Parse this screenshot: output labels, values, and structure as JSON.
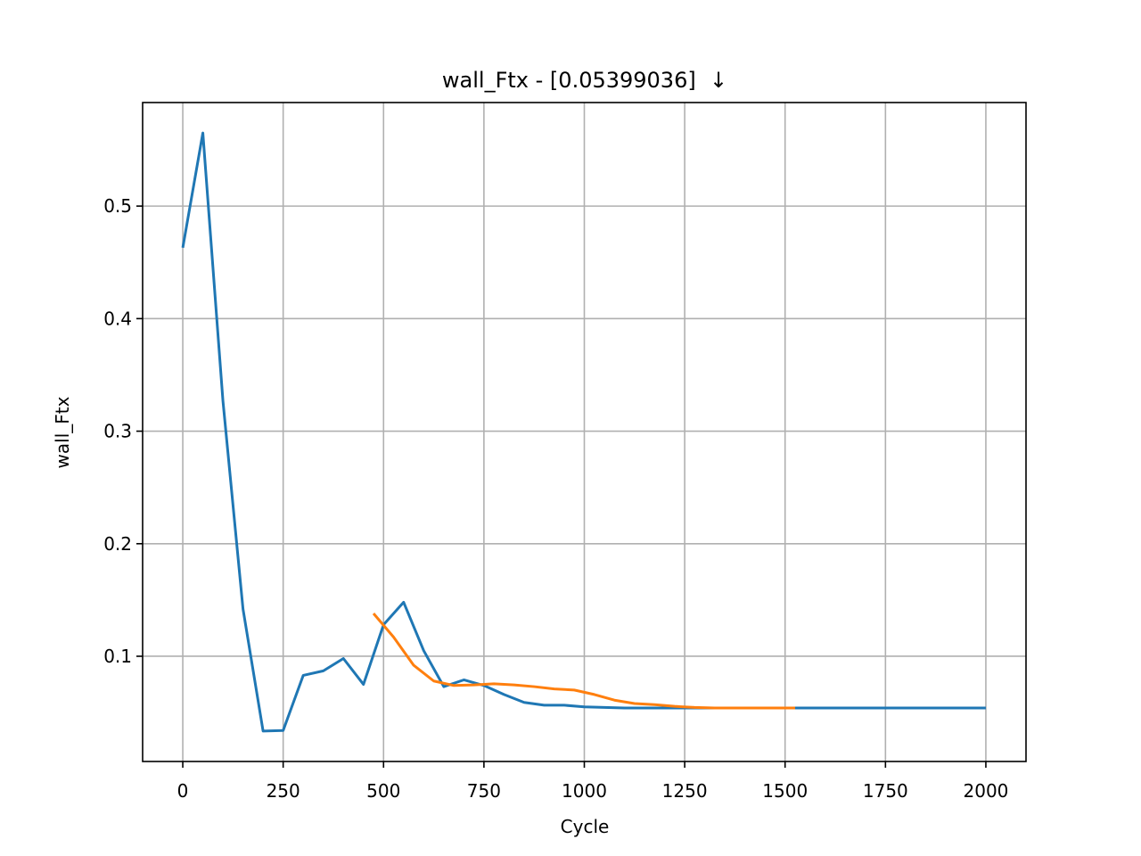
{
  "chart_data": {
    "type": "line",
    "title": "wall_Ftx - [0.05399036]  ↓",
    "x_label": "Cycle",
    "y_label": "wall_Ftx",
    "xlim": [
      -100,
      2100
    ],
    "ylim": [
      0.0065,
      0.592
    ],
    "xticks": [
      0,
      250,
      500,
      750,
      1000,
      1250,
      1500,
      1750,
      2000
    ],
    "yticks": [
      0.1,
      0.2,
      0.3,
      0.4,
      0.5
    ],
    "grid": true,
    "series": [
      {
        "color": "#1f77b4",
        "x": [
          0,
          50,
          100,
          150,
          200,
          250,
          300,
          350,
          400,
          450,
          500,
          550,
          600,
          650,
          700,
          750,
          800,
          850,
          900,
          950,
          1000,
          1050,
          1100,
          1150,
          1200,
          1250,
          1300,
          1350,
          1400,
          1450,
          1500,
          1550,
          1600,
          1650,
          1700,
          1750,
          1800,
          1850,
          1900,
          1950,
          2000
        ],
        "values": [
          0.463,
          0.565,
          0.327,
          0.142,
          0.0335,
          0.034,
          0.083,
          0.087,
          0.098,
          0.075,
          0.128,
          0.148,
          0.105,
          0.073,
          0.079,
          0.074,
          0.066,
          0.059,
          0.0565,
          0.0565,
          0.055,
          0.0545,
          0.054,
          0.054,
          0.054,
          0.054,
          0.054,
          0.054,
          0.054,
          0.054,
          0.054,
          0.054,
          0.054,
          0.054,
          0.054,
          0.054,
          0.054,
          0.054,
          0.054,
          0.054,
          0.054
        ]
      },
      {
        "color": "#ff7f0e",
        "x": [
          475,
          525,
          575,
          625,
          675,
          725,
          775,
          825,
          875,
          925,
          975,
          1025,
          1075,
          1125,
          1175,
          1225,
          1275,
          1325,
          1375,
          1425,
          1475,
          1525
        ],
        "values": [
          0.138,
          0.117,
          0.092,
          0.078,
          0.074,
          0.0745,
          0.0755,
          0.0745,
          0.073,
          0.071,
          0.07,
          0.066,
          0.061,
          0.058,
          0.057,
          0.0555,
          0.0545,
          0.054,
          0.054,
          0.054,
          0.054,
          0.054
        ]
      }
    ]
  }
}
